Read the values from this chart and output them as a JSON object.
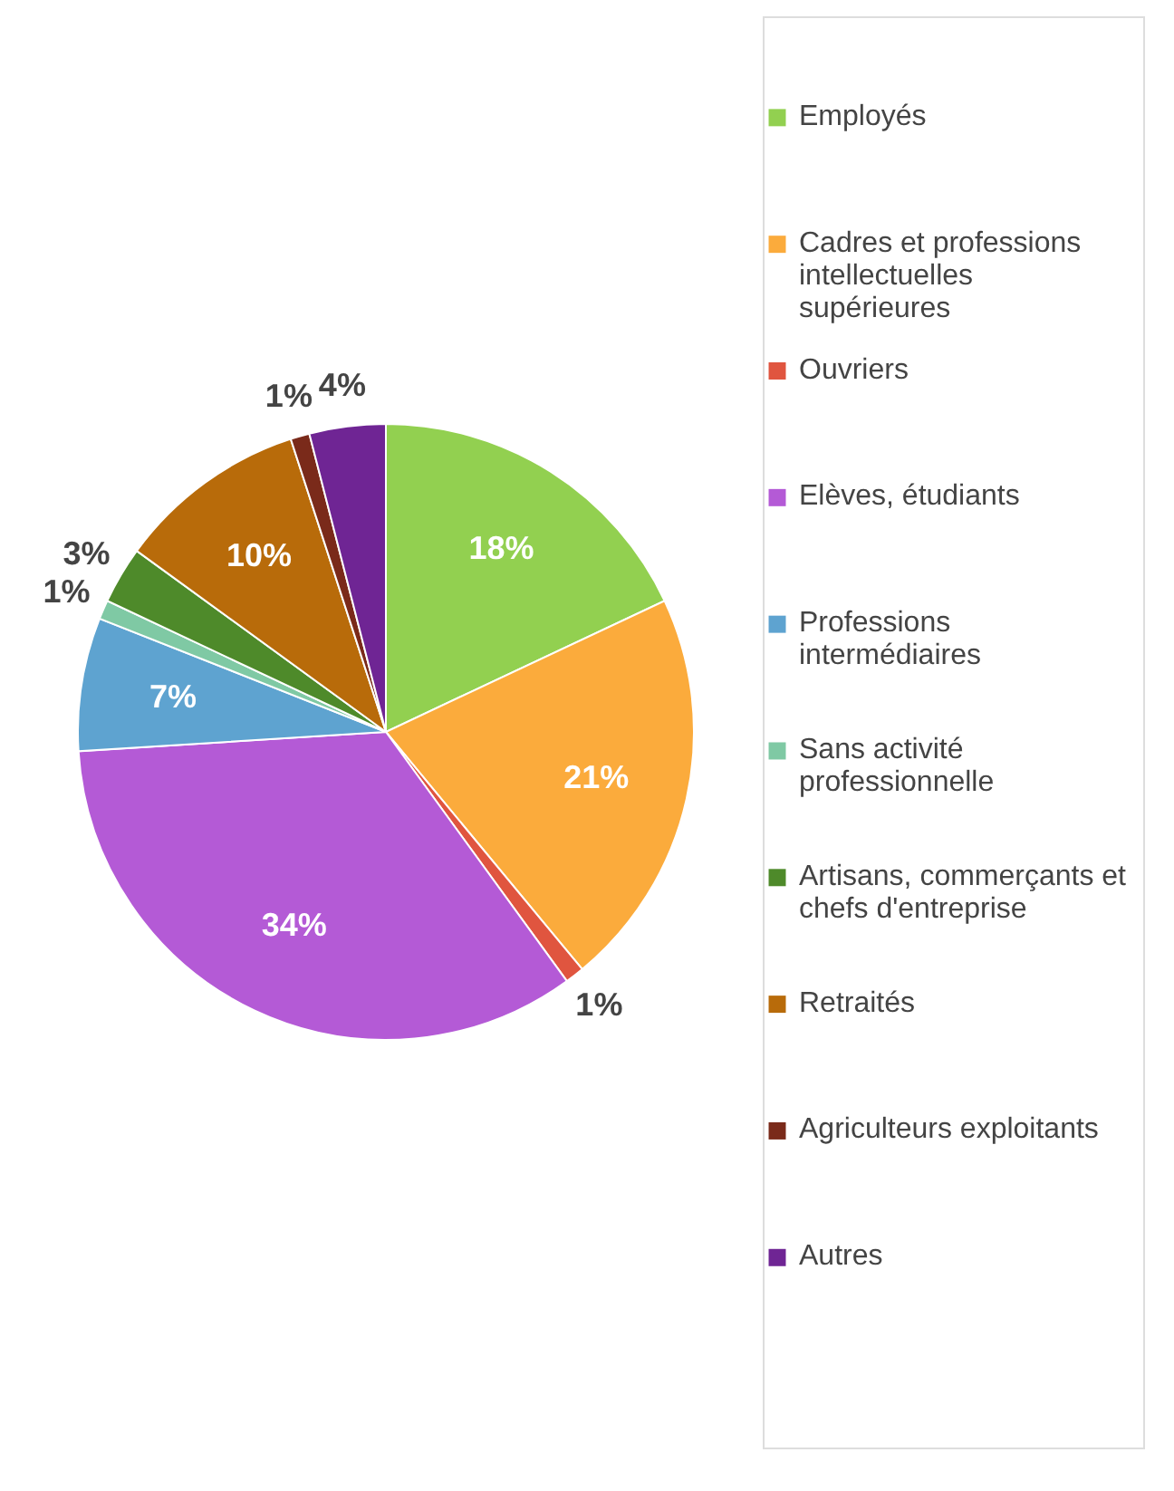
{
  "chart_data": {
    "type": "pie",
    "categories": [
      "Employés",
      "Cadres et professions intellectuelles supérieures",
      "Ouvriers",
      "Elèves, étudiants",
      "Professions intermédiaires",
      "Sans activité professionnelle",
      "Artisans, commerçants et chefs d'entreprise",
      "Retraités",
      "Agriculteurs exploitants",
      "Autres"
    ],
    "values": [
      18,
      21,
      1,
      34,
      7,
      1,
      3,
      10,
      1,
      4
    ],
    "value_labels": [
      "18%",
      "21%",
      "1%",
      "34%",
      "7%",
      "1%",
      "3%",
      "10%",
      "1%",
      "4%"
    ],
    "colors": [
      "#92d050",
      "#fbab3c",
      "#e0553f",
      "#b45ad6",
      "#5ea3d0",
      "#7fc9a4",
      "#4e8a2a",
      "#b86b0a",
      "#7a2a1a",
      "#6f2594"
    ],
    "legend": "right"
  }
}
